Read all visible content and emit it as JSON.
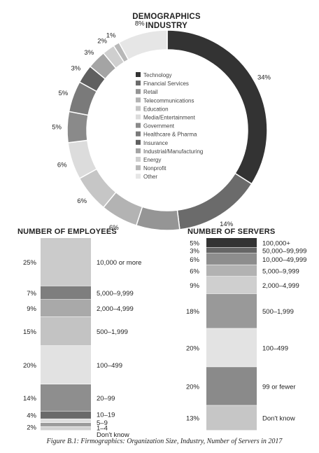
{
  "header": {
    "title_line1": "DEMOGRAPHICS",
    "title_line2": "INDUSTRY"
  },
  "employees_title": "NUMBER OF EMPLOYEES",
  "servers_title": "NUMBER OF SERVERS",
  "caption": "Figure B.1: Firmographics: Organization Size, Industry, Number of Servers in 2017",
  "chart_data": [
    {
      "type": "pie",
      "title": "DEMOGRAPHICS INDUSTRY",
      "legend_position": "center",
      "slices": [
        {
          "label": "Technology",
          "value": 34,
          "value_label": "34%",
          "color": "#333333"
        },
        {
          "label": "Financial Services",
          "value": 14,
          "value_label": "14%",
          "color": "#6b6b6b"
        },
        {
          "label": "Retail",
          "value": 7,
          "value_label": "7%",
          "color": "#959595"
        },
        {
          "label": "Telecommunications",
          "value": 6,
          "value_label": "6%",
          "color": "#b3b3b3"
        },
        {
          "label": "Education",
          "value": 6,
          "value_label": "6%",
          "color": "#c6c6c6"
        },
        {
          "label": "Media/Entertainment",
          "value": 6,
          "value_label": "6%",
          "color": "#dcdcdc"
        },
        {
          "label": "Government",
          "value": 5,
          "value_label": "5%",
          "color": "#8a8a8a"
        },
        {
          "label": "Healthcare & Pharma",
          "value": 5,
          "value_label": "5%",
          "color": "#7a7a7a"
        },
        {
          "label": "Insurance",
          "value": 3,
          "value_label": "3%",
          "color": "#5f5f5f"
        },
        {
          "label": "Industrial/Manufacturing",
          "value": 3,
          "value_label": "3%",
          "color": "#a4a4a4"
        },
        {
          "label": "Energy",
          "value": 2,
          "value_label": "2%",
          "color": "#cfcfcf"
        },
        {
          "label": "Nonprofit",
          "value": 1,
          "value_label": "1%",
          "color": "#b8b8b8"
        },
        {
          "label": "Other",
          "value": 8,
          "value_label": "8%",
          "color": "#e6e6e6"
        }
      ]
    },
    {
      "type": "bar",
      "stacked": true,
      "title": "NUMBER OF EMPLOYEES",
      "segments": [
        {
          "label": "10,000 or more",
          "value": 25,
          "value_label": "25%",
          "color": "#cbcbcb"
        },
        {
          "label": "5,000–9,999",
          "value": 7,
          "value_label": "7%",
          "color": "#7e7e7e"
        },
        {
          "label": "2,000–4,999",
          "value": 9,
          "value_label": "9%",
          "color": "#a9a9a9"
        },
        {
          "label": "500–1,999",
          "value": 15,
          "value_label": "15%",
          "color": "#c3c3c3"
        },
        {
          "label": "100–499",
          "value": 20,
          "value_label": "20%",
          "color": "#e2e2e2"
        },
        {
          "label": "20–99",
          "value": 14,
          "value_label": "14%",
          "color": "#8e8e8e"
        },
        {
          "label": "10–19",
          "value": 4,
          "value_label": "4%",
          "color": "#6a6a6a"
        },
        {
          "label": "5–9",
          "value": 2,
          "value_label": "",
          "color": "#dedede"
        },
        {
          "label": "1–4",
          "value": 2,
          "value_label": "2%",
          "color": "#9b9b9b"
        },
        {
          "label": "Don't know",
          "value": 2,
          "value_label": "",
          "color": "#d2d2d2"
        }
      ]
    },
    {
      "type": "bar",
      "stacked": true,
      "title": "NUMBER OF SERVERS",
      "segments": [
        {
          "label": "100,000+",
          "value": 5,
          "value_label": "5%",
          "color": "#333333"
        },
        {
          "label": "50,000–99,999",
          "value": 3,
          "value_label": "3%",
          "color": "#666666"
        },
        {
          "label": "10,000–49,999",
          "value": 6,
          "value_label": "6%",
          "color": "#8d8d8d"
        },
        {
          "label": "5,000–9,999",
          "value": 6,
          "value_label": "6%",
          "color": "#b2b2b2"
        },
        {
          "label": "2,000–4,999",
          "value": 9,
          "value_label": "9%",
          "color": "#cfcfcf"
        },
        {
          "label": "500–1,999",
          "value": 18,
          "value_label": "18%",
          "color": "#999999"
        },
        {
          "label": "100–499",
          "value": 20,
          "value_label": "20%",
          "color": "#e3e3e3"
        },
        {
          "label": "99 or fewer",
          "value": 20,
          "value_label": "20%",
          "color": "#8a8a8a"
        },
        {
          "label": "Don't know",
          "value": 13,
          "value_label": "13%",
          "color": "#c6c6c6"
        }
      ]
    }
  ]
}
